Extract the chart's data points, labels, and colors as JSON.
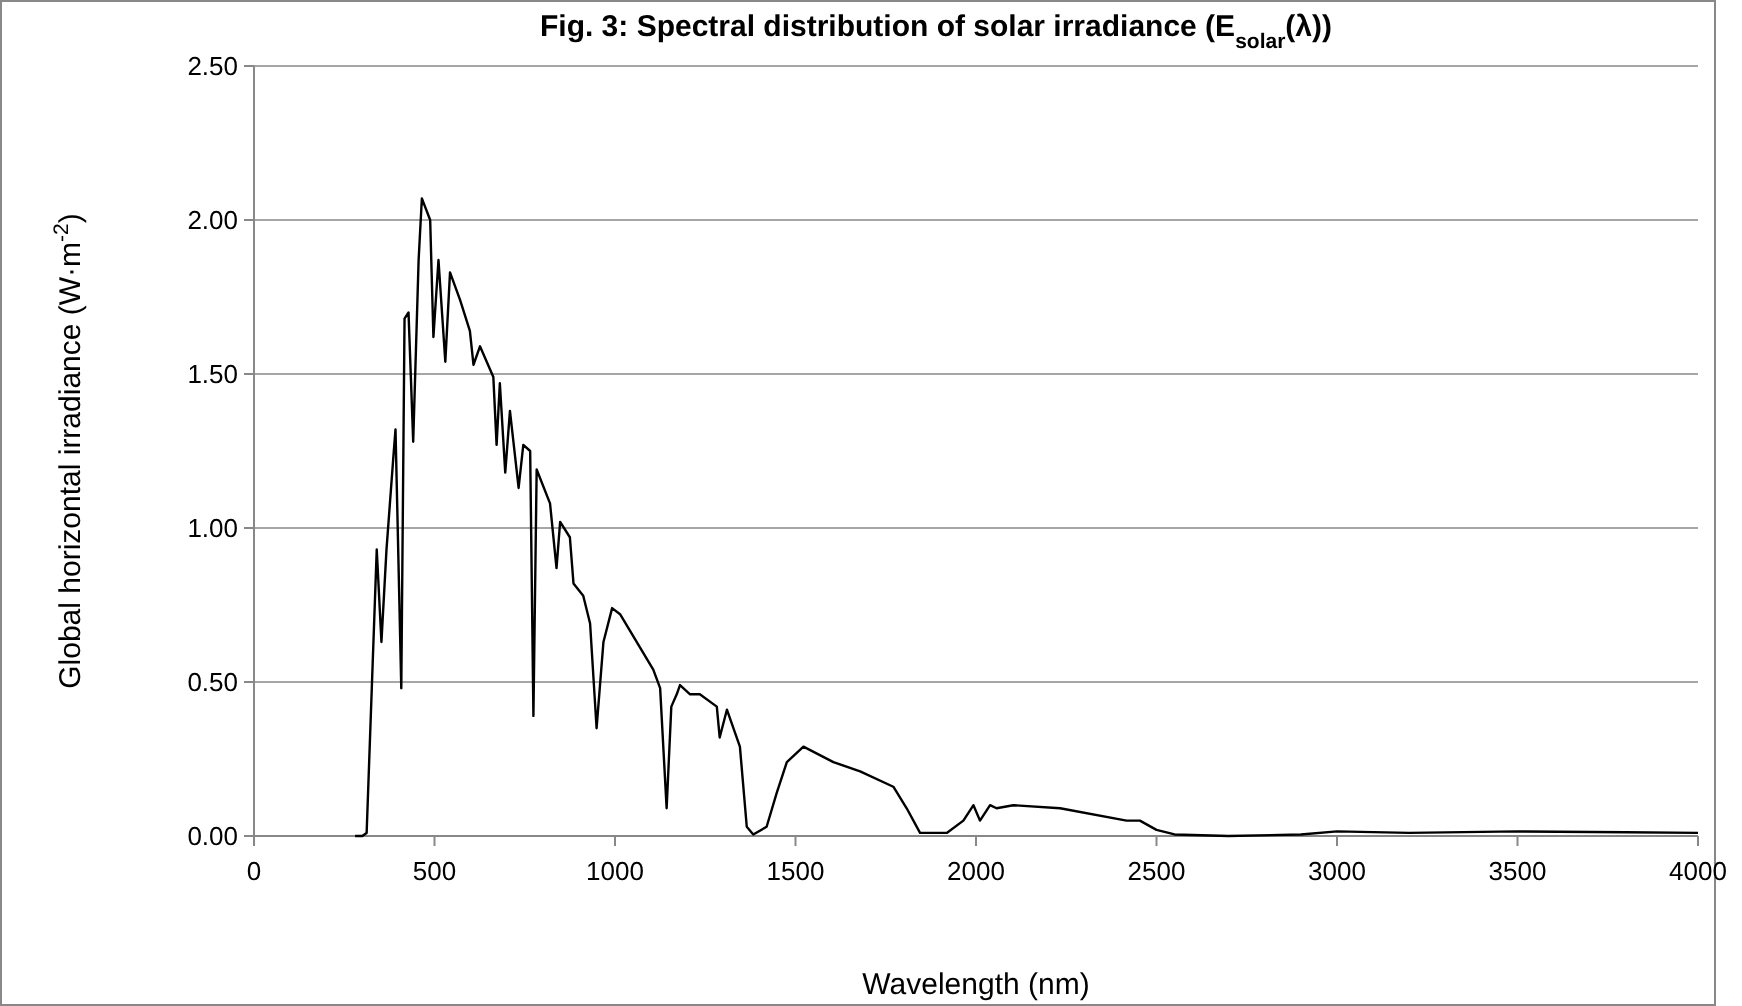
{
  "chart_data": {
    "type": "line",
    "title": "Fig. 3: Spectral distribution of solar irradiance (E$_{solar}$(λ))",
    "xlabel": "Wavelength (nm)",
    "ylabel": "Global horizontal irradiance (W·m$^{-2}$)",
    "xlim": [
      0,
      4000
    ],
    "xticks": [
      0,
      500,
      1000,
      1500,
      2000,
      2500,
      3000,
      3500,
      4000
    ],
    "ylim": [
      0,
      2.5
    ],
    "yticks": [
      {
        "value": 0,
        "label": "0.00"
      },
      {
        "value": 0.5,
        "label": "0.50"
      },
      {
        "value": 1,
        "label": "1.00"
      },
      {
        "value": 1.5,
        "label": "1.50"
      },
      {
        "value": 2,
        "label": "2.00"
      },
      {
        "value": 2.5,
        "label": "2.50"
      }
    ],
    "grid": "y",
    "marker": "none",
    "line_style": "solid",
    "series": [
      {
        "color": "#000000",
        "x": [
          280,
          300,
          312,
          340,
          353,
          367,
          386,
          392,
          408,
          417,
          428,
          441,
          456,
          465,
          488,
          497,
          511,
          530,
          543,
          571,
          598,
          608,
          626,
          663,
          672,
          681,
          696,
          709,
          733,
          746,
          765,
          774,
          783,
          820,
          838,
          848,
          875,
          885,
          912,
          931,
          949,
          968,
          992,
          1014,
          1106,
          1125,
          1143,
          1156,
          1171,
          1180,
          1208,
          1235,
          1282,
          1290,
          1310,
          1346,
          1365,
          1383,
          1420,
          1448,
          1476,
          1522,
          1605,
          1679,
          1771,
          1808,
          1845,
          1919,
          1965,
          1993,
          2011,
          2039,
          2057,
          2103,
          2233,
          2417,
          2454,
          2500,
          2550,
          2700,
          2900,
          3000,
          3200,
          3500,
          3800,
          4000
        ],
        "values": [
          0,
          0,
          0.01,
          0.93,
          0.63,
          0.93,
          1.23,
          1.32,
          0.48,
          1.68,
          1.7,
          1.28,
          1.87,
          2.07,
          2,
          1.62,
          1.87,
          1.54,
          1.83,
          1.74,
          1.64,
          1.53,
          1.59,
          1.49,
          1.27,
          1.47,
          1.18,
          1.38,
          1.13,
          1.27,
          1.25,
          0.39,
          1.19,
          1.08,
          0.87,
          1.02,
          0.97,
          0.82,
          0.78,
          0.69,
          0.35,
          0.63,
          0.74,
          0.72,
          0.54,
          0.48,
          0.09,
          0.42,
          0.46,
          0.49,
          0.46,
          0.46,
          0.42,
          0.32,
          0.41,
          0.29,
          0.03,
          0.005,
          0.03,
          0.14,
          0.24,
          0.29,
          0.24,
          0.21,
          0.16,
          0.09,
          0.01,
          0.01,
          0.05,
          0.1,
          0.05,
          0.1,
          0.09,
          0.1,
          0.09,
          0.05,
          0.05,
          0.02,
          0.005,
          0,
          0.005,
          0.015,
          0.01,
          0.015,
          0.012,
          0.01
        ]
      }
    ]
  }
}
